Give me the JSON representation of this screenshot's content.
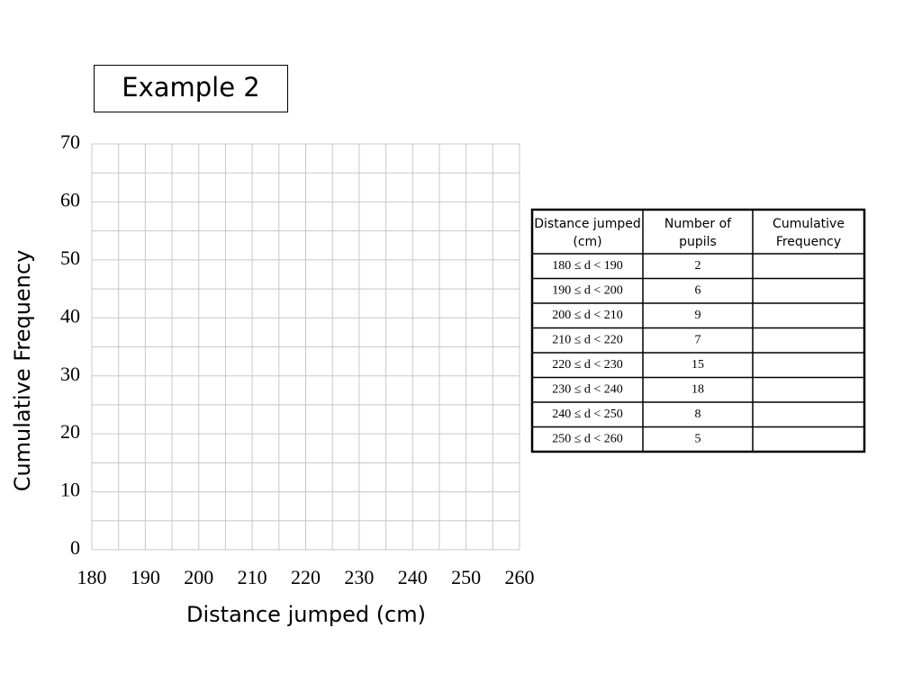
{
  "title": "Example 2",
  "chart_data": {
    "type": "line",
    "xlabel": "Distance jumped (cm)",
    "ylabel": "Cumulative Frequency",
    "xlim": [
      180,
      260
    ],
    "ylim": [
      0,
      70
    ],
    "xticks": [
      180,
      190,
      200,
      210,
      220,
      230,
      240,
      250,
      260
    ],
    "yticks": [
      0,
      10,
      20,
      30,
      40,
      50,
      60,
      70
    ],
    "xminorticks": [
      185,
      195,
      205,
      215,
      225,
      235,
      245,
      255
    ],
    "yminorticks": [
      5,
      15,
      25,
      35,
      45,
      55,
      65
    ],
    "grid": true,
    "series": []
  },
  "table": {
    "header": [
      "Distance jumped (cm)",
      "Number of pupils",
      "Cumulative Frequency"
    ],
    "rows": [
      [
        "180 ≤ d  < 190",
        2
      ],
      [
        "190 ≤  d < 200",
        6
      ],
      [
        "200 ≤  d < 210",
        9
      ],
      [
        "210 ≤  d < 220",
        7
      ],
      [
        "220 ≤  d < 230",
        15
      ],
      [
        "230 ≤  d < 240",
        18
      ],
      [
        "240 ≤  d < 250",
        8
      ],
      [
        "250 ≤  d < 260",
        5
      ]
    ]
  }
}
